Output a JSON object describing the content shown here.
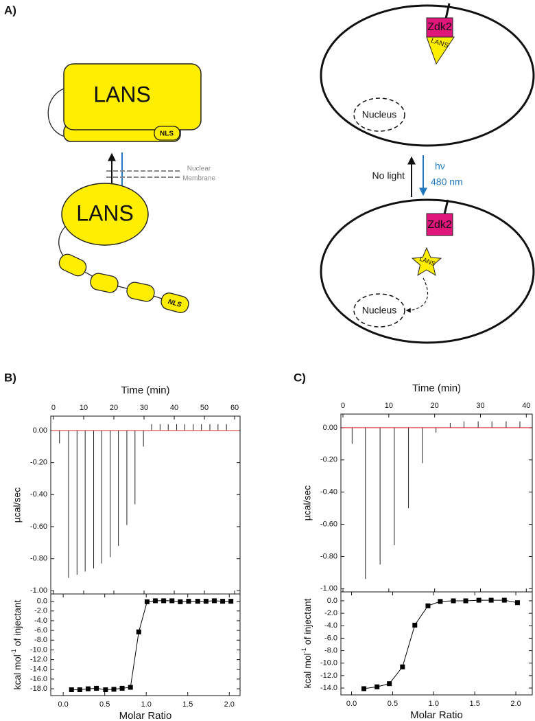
{
  "panel_labels": [
    "A)",
    "B)",
    "C)"
  ],
  "diagram": {
    "left": {
      "top_domain": "LANS",
      "top_nls": "NLS",
      "membrane_line1": "Nuclear",
      "membrane_line2": "Membrane",
      "bottom_domain": "LANS",
      "bottom_nls": "NLS"
    },
    "right": {
      "top_zdk2": "Zdk2",
      "top_lans": "LANS",
      "top_nucleus": "Nucleus",
      "dark_label": "No light",
      "light_label_1": "hν",
      "light_label_2": "480 nm",
      "bottom_zdk2": "Zdk2",
      "bottom_lans": "LANS",
      "bottom_nucleus": "Nucleus"
    }
  },
  "chart_data": [
    {
      "type": "spike",
      "x_axis_position": "top",
      "x_label": "Time (min)",
      "y_label": "µcal/sec",
      "x": [
        2,
        5,
        7.8,
        10.5,
        13.3,
        16,
        18.8,
        21.5,
        24.3,
        27,
        29.8,
        32.5,
        35.3,
        38,
        40.8,
        43.5,
        46.3,
        49,
        51.8,
        54.5,
        57.3
      ],
      "values": [
        -0.08,
        -0.92,
        -0.9,
        -0.88,
        -0.86,
        -0.83,
        -0.79,
        -0.72,
        -0.59,
        -0.46,
        -0.1,
        0.04,
        0.04,
        0.04,
        0.04,
        0.04,
        0.04,
        0.04,
        0.04,
        0.04,
        0.04
      ],
      "color": "#222222",
      "baseline_color": "#d62728",
      "xlim": [
        -0.9,
        61.8
      ],
      "xticks": [
        0,
        10,
        20,
        30,
        40,
        50,
        60
      ],
      "ylim": [
        -1.02,
        0.09
      ],
      "yticks": [
        {
          "value": 0,
          "label": "0.00"
        },
        {
          "value": -0.2,
          "label": "-0.20"
        },
        {
          "value": -0.4,
          "label": "-0.40"
        },
        {
          "value": -0.6,
          "label": "-0.60"
        },
        {
          "value": -0.8,
          "label": "-0.80"
        },
        {
          "value": -1,
          "label": "-1.00"
        }
      ]
    },
    {
      "type": "scatter",
      "x_axis_position": "bottom",
      "x_label": "Molar Ratio",
      "y_label": [
        "kcal mol",
        "-1",
        "of injectant"
      ],
      "x": [
        0.1,
        0.2,
        0.3,
        0.4,
        0.51,
        0.61,
        0.71,
        0.81,
        0.91,
        1.01,
        1.11,
        1.21,
        1.31,
        1.41,
        1.51,
        1.62,
        1.72,
        1.82,
        1.92,
        2.02
      ],
      "values": [
        -18.2,
        -18.2,
        -18.0,
        -17.9,
        -18.2,
        -18.1,
        -17.9,
        -17.7,
        -6.3,
        -0.1,
        0.1,
        0.1,
        0.1,
        -0.1,
        0.0,
        0.0,
        0.0,
        0.1,
        0.0,
        0.0
      ],
      "color": "#000000",
      "connect": true,
      "xlim": [
        -0.15,
        2.13
      ],
      "xticks": [
        {
          "value": 0,
          "label": "0.0"
        },
        {
          "value": 0.5,
          "label": "0.5"
        },
        {
          "value": 1,
          "label": "1.0"
        },
        {
          "value": 1.5,
          "label": "1.5"
        },
        {
          "value": 2,
          "label": "2.0"
        }
      ],
      "ylim": [
        -19.4,
        1.5
      ],
      "yticks": [
        {
          "value": 0,
          "label": "0.0"
        },
        {
          "value": -2,
          "label": "-2.0"
        },
        {
          "value": -4,
          "label": "-4.0"
        },
        {
          "value": -6,
          "label": "-6.0"
        },
        {
          "value": -8,
          "label": "-8.0"
        },
        {
          "value": -10,
          "label": "-10.0"
        },
        {
          "value": -12,
          "label": "-12.0"
        },
        {
          "value": -14,
          "label": "-14.0"
        },
        {
          "value": -16,
          "label": "-16.0"
        },
        {
          "value": -18,
          "label": "-18.0"
        }
      ]
    },
    {
      "type": "spike",
      "x_axis_position": "top",
      "x_label": "Time (min)",
      "y_label": "µcal/sec",
      "x": [
        2,
        4.9,
        8.1,
        11.2,
        14.3,
        17.3,
        20.3,
        23.4,
        26.4,
        29.5,
        32.5,
        35.6,
        38.6
      ],
      "values": [
        -0.1,
        -0.94,
        -0.85,
        -0.73,
        -0.5,
        -0.22,
        -0.03,
        0.03,
        0.04,
        0.04,
        0.04,
        0.04,
        0.04
      ],
      "color": "#222222",
      "baseline_color": "#d62728",
      "xlim": [
        -0.45,
        41.3
      ],
      "xticks": [
        0,
        10,
        20,
        30,
        40
      ],
      "ylim": [
        -1.02,
        0.085
      ],
      "yticks": [
        {
          "value": 0,
          "label": "0.00"
        },
        {
          "value": -0.2,
          "label": "-0.20"
        },
        {
          "value": -0.4,
          "label": "-0.40"
        },
        {
          "value": -0.6,
          "label": "-0.60"
        },
        {
          "value": -0.8,
          "label": "-0.80"
        },
        {
          "value": -1,
          "label": "-1.00"
        }
      ]
    },
    {
      "type": "scatter",
      "x_axis_position": "bottom",
      "x_label": "Molar Ratio",
      "y_label": [
        "kcal mol",
        "-1",
        "of injectant"
      ],
      "x": [
        0.15,
        0.31,
        0.46,
        0.62,
        0.77,
        0.93,
        1.08,
        1.24,
        1.39,
        1.55,
        1.7,
        1.86,
        2.02
      ],
      "values": [
        -14.1,
        -13.8,
        -13.3,
        -10.6,
        -3.9,
        -0.8,
        -0.1,
        0.0,
        0.0,
        0.1,
        0.1,
        0.1,
        -0.3
      ],
      "color": "#000000",
      "connect": true,
      "xlim": [
        -0.13,
        2.2
      ],
      "xticks": [
        {
          "value": 0,
          "label": "0.0"
        },
        {
          "value": 0.5,
          "label": "0.5"
        },
        {
          "value": 1,
          "label": "1.0"
        },
        {
          "value": 1.5,
          "label": "1.5"
        },
        {
          "value": 2,
          "label": "2.0"
        }
      ],
      "ylim": [
        -15.1,
        1.43
      ],
      "yticks": [
        {
          "value": 0,
          "label": "0.0"
        },
        {
          "value": -2,
          "label": "-2.0"
        },
        {
          "value": -4,
          "label": "-4.0"
        },
        {
          "value": -6,
          "label": "-6.0"
        },
        {
          "value": -8,
          "label": "-8.0"
        },
        {
          "value": -10,
          "label": "-10.0"
        },
        {
          "value": -12,
          "label": "-12.0"
        },
        {
          "value": -14,
          "label": "-14.0"
        }
      ]
    }
  ]
}
